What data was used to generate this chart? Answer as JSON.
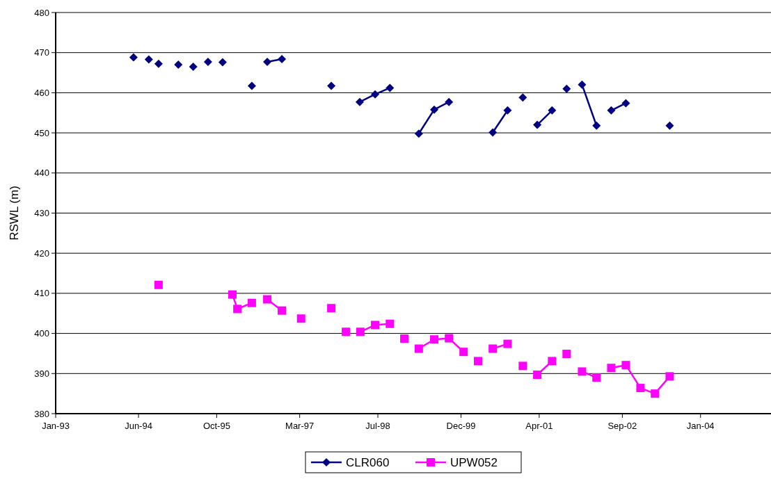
{
  "chart_data": {
    "type": "line",
    "ylabel": "RSWL (m)",
    "xlim": [
      "1993-01-01",
      "2005-03-15"
    ],
    "xticks": [
      {
        "value": "1993-01-01",
        "label": "Jan-93"
      },
      {
        "value": "1994-06-01",
        "label": "Jun-94"
      },
      {
        "value": "1995-10-01",
        "label": "Oct-95"
      },
      {
        "value": "1997-03-01",
        "label": "Mar-97"
      },
      {
        "value": "1998-07-01",
        "label": "Jul-98"
      },
      {
        "value": "1999-12-01",
        "label": "Dec-99"
      },
      {
        "value": "2001-04-01",
        "label": "Apr-01"
      },
      {
        "value": "2002-09-01",
        "label": "Sep-02"
      },
      {
        "value": "2004-01-01",
        "label": "Jan-04"
      }
    ],
    "ylim": [
      380,
      480
    ],
    "yticks": [
      380,
      390,
      400,
      410,
      420,
      430,
      440,
      450,
      460,
      470,
      480
    ],
    "grid": "y",
    "legend": "bottom",
    "line_style": "solid",
    "series": [
      {
        "name": "CLR060",
        "color": "#000080",
        "marker": "diamond",
        "x": [
          "1994-05-01",
          "1994-06-15",
          "1994-08-04",
          "1994-09-05",
          "1994-10-04",
          "1994-12-01",
          "1995-02-04",
          "1995-04-01",
          "1995-05-08",
          "1995-07-01",
          "1995-08-08",
          "1995-10-01",
          "1995-11-07",
          "1996-02-01",
          "1996-05-07",
          "1996-07-01",
          "1996-08-11",
          "1996-11-10",
          "1997-04-01",
          "1997-09-14",
          "1997-12-01",
          "1998-03-10",
          "1998-06-14",
          "1998-09-14",
          "1998-12-01",
          "1999-03-13",
          "1999-06-17",
          "1999-09-17",
          "2000-01-01",
          "2000-06-16",
          "2000-09-16",
          "2000-11-01",
          "2000-12-20",
          "2001-02-01",
          "2001-03-20",
          "2001-06-20",
          "2001-08-01",
          "2001-09-19",
          "2001-11-01",
          "2001-12-24",
          "2002-03-24",
          "2002-05-01",
          "2002-06-24",
          "2002-09-23",
          "2003-01-01",
          "2003-06-23"
        ],
        "values": [
          468.8,
          null,
          468.3,
          null,
          467.2,
          null,
          467.0,
          null,
          466.5,
          null,
          467.7,
          null,
          467.6,
          null,
          461.7,
          null,
          467.7,
          468.4,
          null,
          461.7,
          null,
          457.7,
          459.6,
          461.2,
          null,
          449.8,
          455.8,
          457.7,
          null,
          450.1,
          455.6,
          null,
          458.8,
          null,
          452.0,
          455.6,
          null,
          461.0,
          null,
          462.0,
          451.8,
          null,
          455.6,
          457.4,
          null,
          451.8
        ]
      },
      {
        "name": "UPW052",
        "color": "#ff00ff",
        "marker": "square",
        "x": [
          "1994-10-04",
          "1995-06-01",
          "1996-01-07",
          "1996-02-07",
          "1996-05-07",
          "1996-06-20",
          "1996-08-11",
          "1996-11-10",
          "1997-01-01",
          "1997-03-10",
          "1997-06-01",
          "1997-09-14",
          "1997-11-01",
          "1997-12-14",
          "1998-02-01",
          "1998-03-14",
          "1998-06-14",
          "1998-09-14",
          "1998-11-01",
          "1998-12-13",
          "1999-02-01",
          "1999-03-13",
          "1999-06-17",
          "1999-09-17",
          "1999-12-17",
          "2000-02-01",
          "2000-03-16",
          "2000-05-01",
          "2000-06-16",
          "2000-09-16",
          "2000-11-01",
          "2000-12-20",
          "2001-02-01",
          "2001-03-20",
          "2001-06-20",
          "2001-08-01",
          "2001-09-19",
          "2001-11-01",
          "2001-12-24",
          "2002-03-24",
          "2002-05-01",
          "2002-06-24",
          "2002-09-23",
          "2002-12-23",
          "2003-03-23",
          "2003-06-23"
        ],
        "values": [
          412.1,
          null,
          409.7,
          406.1,
          407.6,
          null,
          408.5,
          405.7,
          null,
          403.7,
          null,
          406.3,
          null,
          400.4,
          null,
          400.4,
          402.1,
          402.4,
          null,
          398.7,
          null,
          396.2,
          398.5,
          398.8,
          395.4,
          null,
          393.1,
          null,
          396.2,
          397.4,
          null,
          391.9,
          null,
          389.7,
          393.1,
          null,
          394.9,
          null,
          390.5,
          389.0,
          null,
          391.4,
          392.1,
          386.4,
          385.0,
          389.3
        ]
      }
    ]
  }
}
